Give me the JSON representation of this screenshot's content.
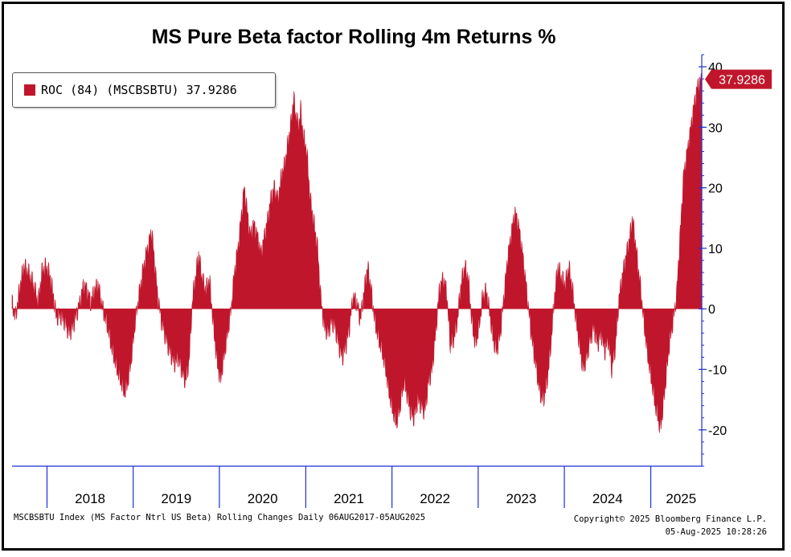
{
  "chart_data": {
    "type": "bar",
    "title": "MS Pure Beta factor Rolling 4m Returns %",
    "legend": {
      "label": "ROC (84) (MSCBSBTU) 37.9286",
      "placement": "top-left"
    },
    "last_value_label": "37.9286",
    "ylim": [
      -26,
      42
    ],
    "yticks": [
      40,
      30,
      20,
      10,
      0,
      -10,
      -20
    ],
    "ytick_labels": [
      "40",
      "30",
      "20",
      "10",
      "0",
      "-10",
      "-20"
    ],
    "x_start": "2017-08-06",
    "x_end": "2025-08-05",
    "year_labels": [
      "2018",
      "2019",
      "2020",
      "2021",
      "2022",
      "2023",
      "2024",
      "2025"
    ],
    "series": [
      {
        "name": "ROC (84) (MSCBSBTU)",
        "color": "#c0162c",
        "points": [
          [
            "2017-08-06",
            1
          ],
          [
            "2017-08-20",
            -1.5
          ],
          [
            "2017-09-10",
            4
          ],
          [
            "2017-09-25",
            7
          ],
          [
            "2017-10-15",
            6
          ],
          [
            "2017-11-05",
            4
          ],
          [
            "2017-11-25",
            1
          ],
          [
            "2017-12-10",
            6
          ],
          [
            "2017-12-25",
            7
          ],
          [
            "2018-01-10",
            6
          ],
          [
            "2018-01-25",
            3
          ],
          [
            "2018-02-10",
            -1.5
          ],
          [
            "2018-02-25",
            -1
          ],
          [
            "2018-03-15",
            -2
          ],
          [
            "2018-04-05",
            -4
          ],
          [
            "2018-04-20",
            -3
          ],
          [
            "2018-05-05",
            -1
          ],
          [
            "2018-05-20",
            1
          ],
          [
            "2018-06-05",
            4
          ],
          [
            "2018-06-20",
            3
          ],
          [
            "2018-07-05",
            1
          ],
          [
            "2018-07-20",
            3
          ],
          [
            "2018-08-05",
            4
          ],
          [
            "2018-08-25",
            0
          ],
          [
            "2018-09-15",
            -3
          ],
          [
            "2018-10-05",
            -7
          ],
          [
            "2018-10-25",
            -10
          ],
          [
            "2018-11-10",
            -12
          ],
          [
            "2018-11-25",
            -14
          ],
          [
            "2018-12-10",
            -12
          ],
          [
            "2018-12-25",
            -8
          ],
          [
            "2019-01-10",
            -2
          ],
          [
            "2019-01-25",
            2
          ],
          [
            "2019-02-10",
            6
          ],
          [
            "2019-02-25",
            9
          ],
          [
            "2019-03-10",
            11
          ],
          [
            "2019-03-20",
            13
          ],
          [
            "2019-04-01",
            8
          ],
          [
            "2019-04-15",
            2
          ],
          [
            "2019-05-01",
            -2
          ],
          [
            "2019-05-20",
            -5
          ],
          [
            "2019-06-05",
            -7
          ],
          [
            "2019-06-25",
            -9
          ],
          [
            "2019-07-10",
            -8
          ],
          [
            "2019-07-25",
            -10
          ],
          [
            "2019-08-10",
            -12
          ],
          [
            "2019-08-25",
            -9
          ],
          [
            "2019-09-10",
            2
          ],
          [
            "2019-09-25",
            6
          ],
          [
            "2019-10-05",
            9
          ],
          [
            "2019-10-20",
            5
          ],
          [
            "2019-11-05",
            3
          ],
          [
            "2019-11-20",
            5
          ],
          [
            "2019-12-05",
            -2
          ],
          [
            "2019-12-20",
            -8
          ],
          [
            "2020-01-05",
            -12
          ],
          [
            "2020-01-20",
            -8
          ],
          [
            "2020-02-05",
            -4
          ],
          [
            "2020-02-20",
            0
          ],
          [
            "2020-03-05",
            6
          ],
          [
            "2020-03-20",
            10
          ],
          [
            "2020-04-05",
            16
          ],
          [
            "2020-04-15",
            20
          ],
          [
            "2020-04-25",
            17
          ],
          [
            "2020-05-10",
            12
          ],
          [
            "2020-05-25",
            14
          ],
          [
            "2020-06-10",
            12
          ],
          [
            "2020-06-25",
            9
          ],
          [
            "2020-07-10",
            12
          ],
          [
            "2020-07-25",
            15
          ],
          [
            "2020-08-05",
            18
          ],
          [
            "2020-08-20",
            20
          ],
          [
            "2020-09-05",
            18
          ],
          [
            "2020-09-20",
            22
          ],
          [
            "2020-10-05",
            24
          ],
          [
            "2020-10-20",
            28
          ],
          [
            "2020-11-01",
            31
          ],
          [
            "2020-11-10",
            35
          ],
          [
            "2020-11-20",
            32
          ],
          [
            "2020-12-01",
            30
          ],
          [
            "2020-12-10",
            33
          ],
          [
            "2020-12-20",
            29
          ],
          [
            "2021-01-05",
            26
          ],
          [
            "2021-01-20",
            18
          ],
          [
            "2021-02-05",
            14
          ],
          [
            "2021-02-20",
            10
          ],
          [
            "2021-03-05",
            2
          ],
          [
            "2021-03-20",
            -3
          ],
          [
            "2021-04-05",
            -4
          ],
          [
            "2021-04-20",
            -2
          ],
          [
            "2021-05-05",
            -3
          ],
          [
            "2021-05-20",
            -6
          ],
          [
            "2021-06-05",
            -8
          ],
          [
            "2021-06-20",
            -6
          ],
          [
            "2021-07-05",
            -3
          ],
          [
            "2021-07-20",
            2
          ],
          [
            "2021-08-05",
            1
          ],
          [
            "2021-08-20",
            -2
          ],
          [
            "2021-09-05",
            3
          ],
          [
            "2021-09-20",
            7
          ],
          [
            "2021-10-05",
            3
          ],
          [
            "2021-10-20",
            -2
          ],
          [
            "2021-11-05",
            -5
          ],
          [
            "2021-11-20",
            -7
          ],
          [
            "2021-12-05",
            -10
          ],
          [
            "2021-12-20",
            -14
          ],
          [
            "2022-01-05",
            -17
          ],
          [
            "2022-01-20",
            -19
          ],
          [
            "2022-02-05",
            -16
          ],
          [
            "2022-02-20",
            -12
          ],
          [
            "2022-03-05",
            -14
          ],
          [
            "2022-03-20",
            -17
          ],
          [
            "2022-04-05",
            -18
          ],
          [
            "2022-04-20",
            -15
          ],
          [
            "2022-05-05",
            -16
          ],
          [
            "2022-05-20",
            -17
          ],
          [
            "2022-06-05",
            -12
          ],
          [
            "2022-06-20",
            -10
          ],
          [
            "2022-07-05",
            -4
          ],
          [
            "2022-07-20",
            3
          ],
          [
            "2022-08-05",
            5
          ],
          [
            "2022-08-20",
            3
          ],
          [
            "2022-09-05",
            -6
          ],
          [
            "2022-09-20",
            -5
          ],
          [
            "2022-10-05",
            -2
          ],
          [
            "2022-10-20",
            4
          ],
          [
            "2022-11-05",
            7
          ],
          [
            "2022-11-20",
            5
          ],
          [
            "2022-12-05",
            -2
          ],
          [
            "2022-12-20",
            -6
          ],
          [
            "2023-01-05",
            -3
          ],
          [
            "2023-01-20",
            2
          ],
          [
            "2023-02-05",
            3
          ],
          [
            "2023-02-20",
            -1
          ],
          [
            "2023-03-05",
            -5
          ],
          [
            "2023-03-20",
            -7
          ],
          [
            "2023-04-05",
            -4
          ],
          [
            "2023-04-20",
            2
          ],
          [
            "2023-05-05",
            8
          ],
          [
            "2023-05-20",
            12
          ],
          [
            "2023-06-05",
            16
          ],
          [
            "2023-06-20",
            14
          ],
          [
            "2023-07-05",
            10
          ],
          [
            "2023-07-20",
            5
          ],
          [
            "2023-08-05",
            -1
          ],
          [
            "2023-08-20",
            -6
          ],
          [
            "2023-09-05",
            -10
          ],
          [
            "2023-09-20",
            -14
          ],
          [
            "2023-10-05",
            -15
          ],
          [
            "2023-10-20",
            -12
          ],
          [
            "2023-11-05",
            -6
          ],
          [
            "2023-11-20",
            2
          ],
          [
            "2023-12-05",
            7
          ],
          [
            "2023-12-20",
            5
          ],
          [
            "2024-01-05",
            4
          ],
          [
            "2024-01-20",
            7
          ],
          [
            "2024-02-05",
            3
          ],
          [
            "2024-02-20",
            -2
          ],
          [
            "2024-03-05",
            -6
          ],
          [
            "2024-03-20",
            -10
          ],
          [
            "2024-04-05",
            -8
          ],
          [
            "2024-04-20",
            -5
          ],
          [
            "2024-05-05",
            -3
          ],
          [
            "2024-05-20",
            -6
          ],
          [
            "2024-06-05",
            -4
          ],
          [
            "2024-06-20",
            -7
          ],
          [
            "2024-07-05",
            -5
          ],
          [
            "2024-07-20",
            -10
          ],
          [
            "2024-08-05",
            -6
          ],
          [
            "2024-08-20",
            2
          ],
          [
            "2024-09-05",
            6
          ],
          [
            "2024-09-20",
            9
          ],
          [
            "2024-10-05",
            12
          ],
          [
            "2024-10-15",
            15
          ],
          [
            "2024-10-25",
            12
          ],
          [
            "2024-11-05",
            8
          ],
          [
            "2024-11-20",
            3
          ],
          [
            "2024-12-05",
            -3
          ],
          [
            "2024-12-20",
            -8
          ],
          [
            "2025-01-05",
            -12
          ],
          [
            "2025-01-20",
            -16
          ],
          [
            "2025-02-01",
            -18
          ],
          [
            "2025-02-10",
            -20
          ],
          [
            "2025-02-20",
            -17
          ],
          [
            "2025-03-05",
            -12
          ],
          [
            "2025-03-20",
            -6
          ],
          [
            "2025-04-05",
            -2
          ],
          [
            "2025-04-20",
            2
          ],
          [
            "2025-05-05",
            12
          ],
          [
            "2025-05-20",
            22
          ],
          [
            "2025-06-05",
            26
          ],
          [
            "2025-06-20",
            30
          ],
          [
            "2025-07-05",
            34
          ],
          [
            "2025-07-20",
            37
          ],
          [
            "2025-08-05",
            37.9286
          ]
        ]
      }
    ],
    "grid": false
  },
  "footer": {
    "source": "MSCBSBTU Index (MS Factor Ntrl US Beta) Rolling Changes  Daily 06AUG2017-05AUG2025",
    "copyright": "Copyright© 2025 Bloomberg Finance L.P.",
    "timestamp": "05-Aug-2025 10:28:26"
  },
  "colors": {
    "bar": "#c0162c",
    "axis": "#1c2fd6",
    "frame": "#000000"
  }
}
